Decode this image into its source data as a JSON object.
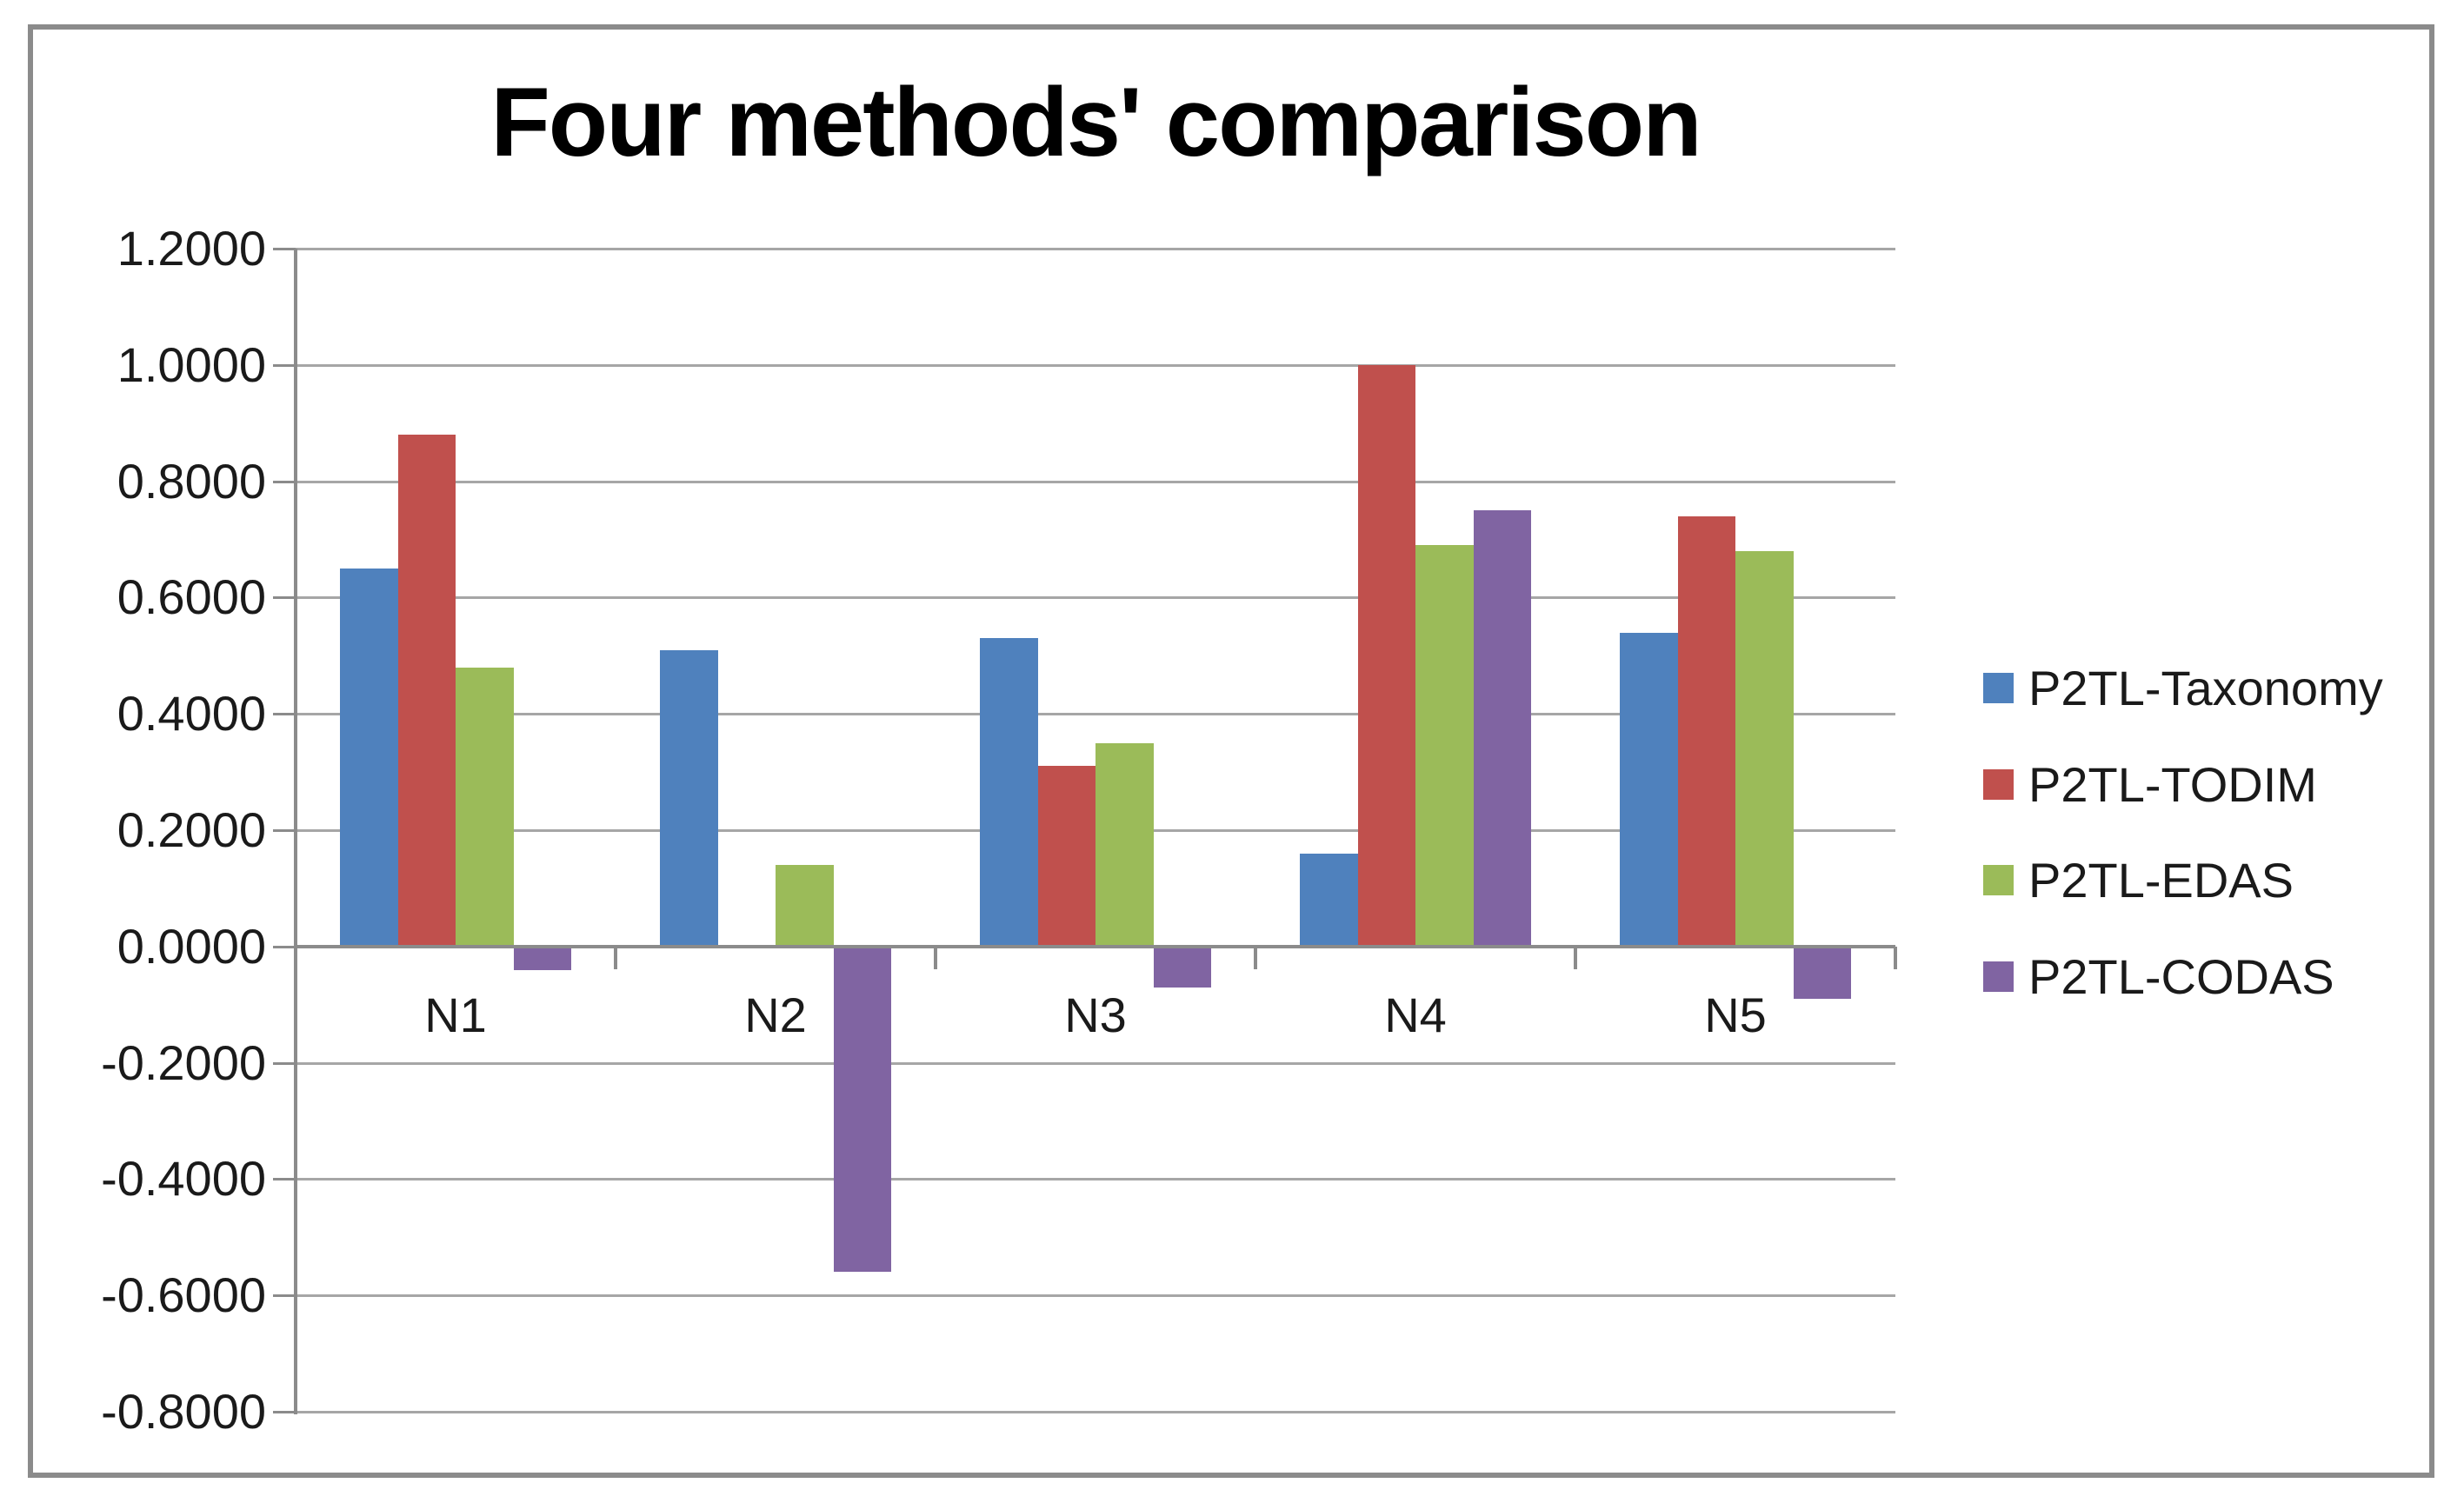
{
  "figure": {
    "background": "#FFFFFF",
    "border_color": "#8B8B8B"
  },
  "chart_data": {
    "type": "bar",
    "title": "Four methods' comparison",
    "categories": [
      "N1",
      "N2",
      "N3",
      "N4",
      "N5"
    ],
    "series": [
      {
        "name": "P2TL-Taxonomy",
        "color": "#4F81BD",
        "values": [
          0.65,
          0.51,
          0.53,
          0.16,
          0.54
        ]
      },
      {
        "name": "P2TL-TODIM",
        "color": "#C0504D",
        "values": [
          0.88,
          0.0,
          0.31,
          1.0,
          0.74
        ]
      },
      {
        "name": "P2TL-EDAS",
        "color": "#9BBB59",
        "values": [
          0.48,
          0.14,
          0.35,
          0.69,
          0.68
        ]
      },
      {
        "name": "P2TL-CODAS",
        "color": "#8064A2",
        "values": [
          -0.04,
          -0.56,
          -0.07,
          0.75,
          -0.09
        ]
      }
    ],
    "ylim": [
      -0.8,
      1.2
    ],
    "ytick_step": 0.2,
    "ytick_labels": [
      "1.2000",
      "1.0000",
      "0.8000",
      "0.6000",
      "0.4000",
      "0.2000",
      "0.0000",
      "-0.2000",
      "-0.4000",
      "-0.6000",
      "-0.8000"
    ],
    "grid": true,
    "legend_position": "right",
    "colors": {
      "gridline": "#A6A6A6",
      "axis": "#8B8B8B",
      "tick_text": "#1A1A1A",
      "title_text": "#000000"
    }
  }
}
